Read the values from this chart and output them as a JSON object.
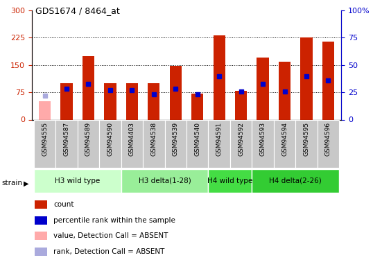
{
  "title": "GDS1674 / 8464_at",
  "samples": [
    "GSM94555",
    "GSM94587",
    "GSM94589",
    "GSM94590",
    "GSM94403",
    "GSM94538",
    "GSM94539",
    "GSM94540",
    "GSM94591",
    "GSM94592",
    "GSM94593",
    "GSM94594",
    "GSM94595",
    "GSM94596"
  ],
  "count_values": [
    50,
    100,
    175,
    100,
    100,
    100,
    148,
    72,
    232,
    80,
    170,
    160,
    225,
    215
  ],
  "percentile_values": [
    22,
    28,
    33,
    27,
    27,
    23,
    28,
    23,
    40,
    26,
    33,
    26,
    40,
    36
  ],
  "absent_flags": [
    true,
    false,
    false,
    false,
    false,
    false,
    false,
    false,
    false,
    false,
    false,
    false,
    false,
    false
  ],
  "absent_count": [
    50,
    0,
    0,
    0,
    0,
    0,
    0,
    0,
    0,
    0,
    0,
    0,
    0,
    0
  ],
  "absent_rank": [
    22,
    0,
    0,
    0,
    0,
    0,
    0,
    0,
    0,
    0,
    0,
    0,
    0,
    0
  ],
  "group_data": [
    {
      "label": "H3 wild type",
      "start": 0,
      "end": 3,
      "color": "#ccffcc"
    },
    {
      "label": "H3 delta(1-28)",
      "start": 4,
      "end": 7,
      "color": "#99ee99"
    },
    {
      "label": "H4 wild type",
      "start": 8,
      "end": 9,
      "color": "#44dd44"
    },
    {
      "label": "H4 delta(2-26)",
      "start": 10,
      "end": 13,
      "color": "#33cc33"
    }
  ],
  "ylim_left": [
    0,
    300
  ],
  "ylim_right": [
    0,
    100
  ],
  "yticks_left": [
    0,
    75,
    150,
    225,
    300
  ],
  "yticks_right": [
    0,
    25,
    50,
    75,
    100
  ],
  "color_count": "#cc2200",
  "color_percentile": "#0000cc",
  "color_absent_count": "#ffaaaa",
  "color_absent_rank": "#aaaadd",
  "legend_items": [
    {
      "color": "#cc2200",
      "label": "count"
    },
    {
      "color": "#0000cc",
      "label": "percentile rank within the sample"
    },
    {
      "color": "#ffaaaa",
      "label": "value, Detection Call = ABSENT"
    },
    {
      "color": "#aaaadd",
      "label": "rank, Detection Call = ABSENT"
    }
  ]
}
